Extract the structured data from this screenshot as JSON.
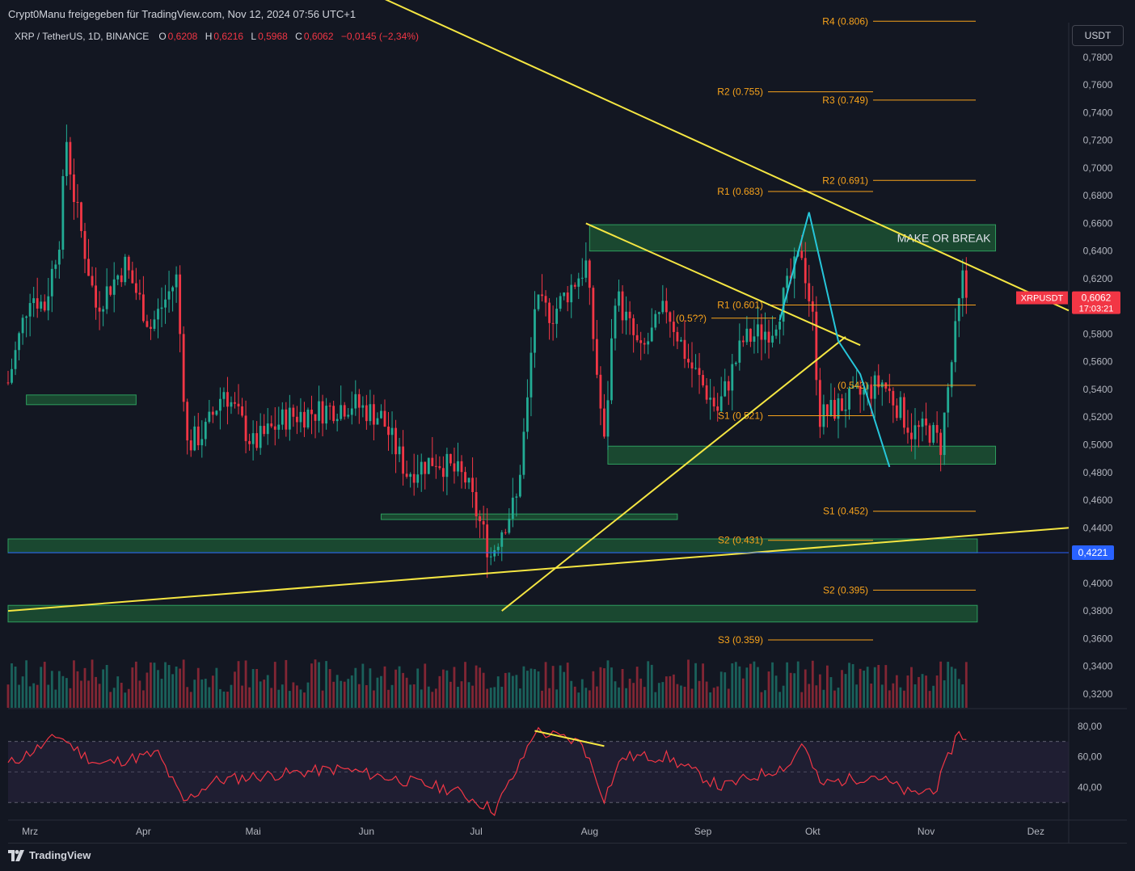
{
  "header": {
    "shared_by": "Crypt0Manu freigegeben für TradingView.com, Nov 12, 2024 07:56 UTC+1"
  },
  "symbol": {
    "name": "XRP / TetherUS, 1D, BINANCE",
    "open_label": "O",
    "open": "0,6208",
    "high_label": "H",
    "high": "0,6216",
    "low_label": "L",
    "low": "0,5968",
    "close_label": "C",
    "close": "0,6062",
    "change": "−0,0145 (−2,34%)"
  },
  "currency_button": "USDT",
  "price_tag": {
    "symbol": "XRPUSDT",
    "price": "0,6062",
    "countdown": "17:03:21"
  },
  "line_tag": "0,4221",
  "annotation": "MAKE OR BREAK",
  "brand": "TradingView",
  "colors": {
    "background": "#131722",
    "up": "#22ab94",
    "down": "#f23645",
    "trendline": "#f5e642",
    "pattern": "#26c6da",
    "pivot": "#f7a21b",
    "zone_fill": "#1e5a36",
    "zone_border": "#2e9e5e",
    "rsi": "#f23645",
    "rsi_band": "#2a2540",
    "price_line": "#2962ff"
  },
  "chart_data": [
    {
      "type": "candlestick",
      "title": "XRP / TetherUS, 1D, BINANCE",
      "x_ticks": [
        "Mrz",
        "Apr",
        "Mai",
        "Jun",
        "Jul",
        "Aug",
        "Sep",
        "Okt",
        "Nov",
        "Dez"
      ],
      "y_ticks": [
        "0,7800",
        "0,7600",
        "0,7400",
        "0,7200",
        "0,7000",
        "0,6800",
        "0,6600",
        "0,6400",
        "0,6200",
        "0,6000",
        "0,5800",
        "0,5600",
        "0,5400",
        "0,5200",
        "0,5000",
        "0,4800",
        "0,4600",
        "0,4400",
        "0,4200",
        "0,4000",
        "0,3800",
        "0,3600",
        "0,3400",
        "0,3200"
      ],
      "ylim": [
        0.31,
        0.805
      ],
      "x_range": [
        "2024-02-24",
        "2024-12-10"
      ],
      "last_close": 0.6062,
      "close_series": [
        {
          "date": "2024-02-24",
          "close": 0.545
        },
        {
          "date": "2024-03-01",
          "close": 0.61
        },
        {
          "date": "2024-03-05",
          "close": 0.6
        },
        {
          "date": "2024-03-09",
          "close": 0.65
        },
        {
          "date": "2024-03-11",
          "close": 0.72
        },
        {
          "date": "2024-03-13",
          "close": 0.68
        },
        {
          "date": "2024-03-19",
          "close": 0.6
        },
        {
          "date": "2024-03-27",
          "close": 0.63
        },
        {
          "date": "2024-04-03",
          "close": 0.585
        },
        {
          "date": "2024-04-10",
          "close": 0.62
        },
        {
          "date": "2024-04-13",
          "close": 0.5
        },
        {
          "date": "2024-04-18",
          "close": 0.51
        },
        {
          "date": "2024-04-23",
          "close": 0.54
        },
        {
          "date": "2024-05-01",
          "close": 0.5
        },
        {
          "date": "2024-05-10",
          "close": 0.52
        },
        {
          "date": "2024-05-20",
          "close": 0.525
        },
        {
          "date": "2024-05-28",
          "close": 0.53
        },
        {
          "date": "2024-06-05",
          "close": 0.52
        },
        {
          "date": "2024-06-12",
          "close": 0.48
        },
        {
          "date": "2024-06-20",
          "close": 0.49
        },
        {
          "date": "2024-06-28",
          "close": 0.475
        },
        {
          "date": "2024-07-05",
          "close": 0.42
        },
        {
          "date": "2024-07-08",
          "close": 0.44
        },
        {
          "date": "2024-07-12",
          "close": 0.46
        },
        {
          "date": "2024-07-15",
          "close": 0.53
        },
        {
          "date": "2024-07-17",
          "close": 0.6
        },
        {
          "date": "2024-07-22",
          "close": 0.595
        },
        {
          "date": "2024-07-31",
          "close": 0.63
        },
        {
          "date": "2024-08-05",
          "close": 0.5
        },
        {
          "date": "2024-08-08",
          "close": 0.61
        },
        {
          "date": "2024-08-15",
          "close": 0.565
        },
        {
          "date": "2024-08-22",
          "close": 0.6
        },
        {
          "date": "2024-08-28",
          "close": 0.56
        },
        {
          "date": "2024-09-05",
          "close": 0.525
        },
        {
          "date": "2024-09-12",
          "close": 0.575
        },
        {
          "date": "2024-09-20",
          "close": 0.585
        },
        {
          "date": "2024-09-28",
          "close": 0.64
        },
        {
          "date": "2024-10-01",
          "close": 0.59
        },
        {
          "date": "2024-10-03",
          "close": 0.52
        },
        {
          "date": "2024-10-10",
          "close": 0.53
        },
        {
          "date": "2024-10-20",
          "close": 0.545
        },
        {
          "date": "2024-10-25",
          "close": 0.525
        },
        {
          "date": "2024-10-28",
          "close": 0.51
        },
        {
          "date": "2024-11-02",
          "close": 0.51
        },
        {
          "date": "2024-11-05",
          "close": 0.5
        },
        {
          "date": "2024-11-08",
          "close": 0.56
        },
        {
          "date": "2024-11-11",
          "close": 0.62
        },
        {
          "date": "2024-11-12",
          "close": 0.6062
        }
      ],
      "levels": [
        {
          "label": "R4 (0.806)",
          "value": 0.806
        },
        {
          "label": "R2 (0.755)",
          "value": 0.755
        },
        {
          "label": "R3 (0.749)",
          "value": 0.749
        },
        {
          "label": "R2 (0.691)",
          "value": 0.691
        },
        {
          "label": "R1 (0.683)",
          "value": 0.683
        },
        {
          "label": "R1 (0.601)",
          "value": 0.601
        },
        {
          "label": "(0.543)",
          "value": 0.543
        },
        {
          "label": "S1 (0.521)",
          "value": 0.521
        },
        {
          "label": "S1 (0.452)",
          "value": 0.452
        },
        {
          "label": "S2 (0.431)",
          "value": 0.431
        },
        {
          "label": "S2 (0.395)",
          "value": 0.395
        },
        {
          "label": "S3 (0.359)",
          "value": 0.359
        },
        {
          "label": "(0.5??)",
          "value": 0.5915
        }
      ],
      "line_value": 0.4221,
      "zones": [
        {
          "from": 0.64,
          "to": 0.659,
          "start": "2024-08-01",
          "end": "2024-11-20",
          "note": "MAKE OR BREAK"
        },
        {
          "from": 0.486,
          "to": 0.499,
          "start": "2024-08-06",
          "end": "2024-11-20"
        },
        {
          "from": 0.422,
          "to": 0.432,
          "start": "2024-02-24",
          "end": "2024-11-15"
        },
        {
          "from": 0.372,
          "to": 0.384,
          "start": "2024-02-24",
          "end": "2024-11-15"
        },
        {
          "from": 0.446,
          "to": 0.45,
          "start": "2024-06-05",
          "end": "2024-08-25"
        },
        {
          "from": 0.529,
          "to": 0.536,
          "start": "2024-02-29",
          "end": "2024-03-30"
        }
      ],
      "trendlines": [
        {
          "from": [
            "2024-02-24",
            0.38
          ],
          "to": [
            "2024-12-10",
            0.44
          ]
        },
        {
          "from": [
            "2024-06-01",
            0.828
          ],
          "to": [
            "2024-12-10",
            0.597
          ]
        },
        {
          "from": [
            "2024-07-08",
            0.38
          ],
          "to": [
            "2024-10-10",
            0.578
          ]
        },
        {
          "from": [
            "2024-07-31",
            0.66
          ],
          "to": [
            "2024-10-14",
            0.572
          ]
        }
      ],
      "pattern": [
        [
          "2024-09-22",
          0.59
        ],
        [
          "2024-09-30",
          0.668
        ],
        [
          "2024-10-08",
          0.575
        ],
        [
          "2024-10-14",
          0.551
        ],
        [
          "2024-10-22",
          0.484
        ]
      ]
    },
    {
      "type": "bar",
      "title": "",
      "role": "volume",
      "note": "relative daily volume, up/down colored"
    },
    {
      "type": "line",
      "title": "",
      "role": "RSI",
      "y_ticks": [
        "80,00",
        "60,00",
        "40,00"
      ],
      "ylim": [
        20,
        90
      ],
      "bands": [
        70,
        50,
        30
      ],
      "series": [
        {
          "date": "2024-02-24",
          "value": 55
        },
        {
          "date": "2024-03-05",
          "value": 68
        },
        {
          "date": "2024-03-09",
          "value": 74
        },
        {
          "date": "2024-03-15",
          "value": 62
        },
        {
          "date": "2024-03-20",
          "value": 55
        },
        {
          "date": "2024-04-05",
          "value": 62
        },
        {
          "date": "2024-04-12",
          "value": 30
        },
        {
          "date": "2024-04-20",
          "value": 44
        },
        {
          "date": "2024-05-01",
          "value": 47
        },
        {
          "date": "2024-05-15",
          "value": 50
        },
        {
          "date": "2024-05-25",
          "value": 52
        },
        {
          "date": "2024-06-10",
          "value": 45
        },
        {
          "date": "2024-06-25",
          "value": 38
        },
        {
          "date": "2024-07-06",
          "value": 25
        },
        {
          "date": "2024-07-13",
          "value": 55
        },
        {
          "date": "2024-07-17",
          "value": 77
        },
        {
          "date": "2024-07-30",
          "value": 69
        },
        {
          "date": "2024-08-05",
          "value": 33
        },
        {
          "date": "2024-08-10",
          "value": 60
        },
        {
          "date": "2024-08-22",
          "value": 60
        },
        {
          "date": "2024-09-06",
          "value": 40
        },
        {
          "date": "2024-09-25",
          "value": 55
        },
        {
          "date": "2024-09-28",
          "value": 70
        },
        {
          "date": "2024-10-03",
          "value": 42
        },
        {
          "date": "2024-10-18",
          "value": 48
        },
        {
          "date": "2024-10-28",
          "value": 35
        },
        {
          "date": "2024-11-04",
          "value": 40
        },
        {
          "date": "2024-11-10",
          "value": 78
        },
        {
          "date": "2024-11-12",
          "value": 70
        }
      ],
      "divergence": [
        [
          "2024-07-17",
          77
        ],
        [
          "2024-08-05",
          67
        ]
      ]
    }
  ]
}
